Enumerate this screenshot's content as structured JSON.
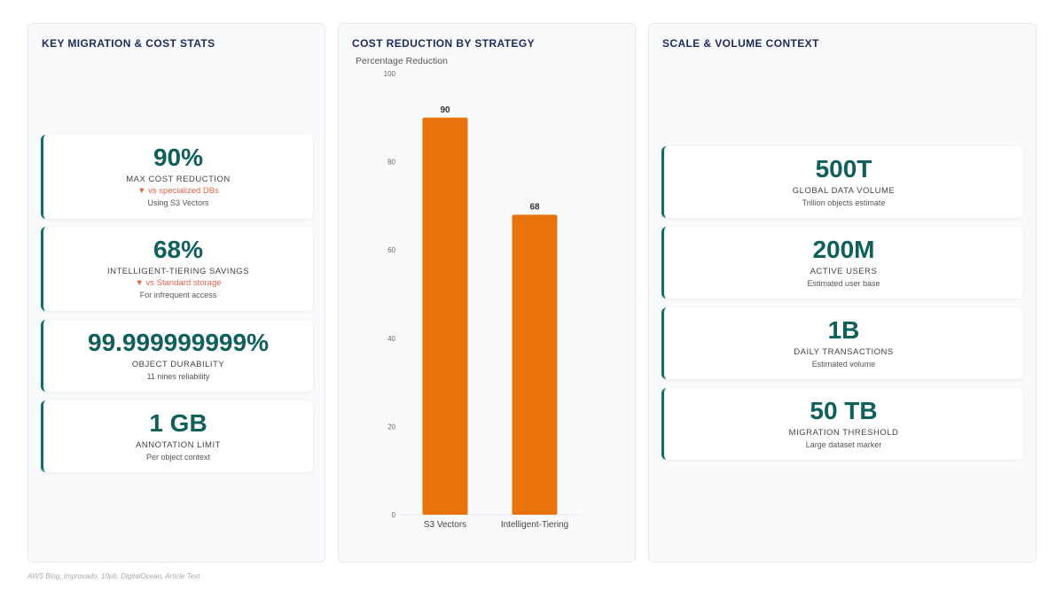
{
  "left_panel": {
    "title": "KEY MIGRATION & COST STATS",
    "cards": [
      {
        "value": "90%",
        "label": "MAX COST REDUCTION",
        "delta": "▼ vs specialized DBs",
        "note": "Using S3 Vectors"
      },
      {
        "value": "68%",
        "label": "INTELLIGENT-TIERING SAVINGS",
        "delta": "▼ vs Standard storage",
        "note": "For infrequent access"
      },
      {
        "value": "99.999999999%",
        "label": "OBJECT DURABILITY",
        "note": "11 nines reliability"
      },
      {
        "value": "1 GB",
        "label": "ANNOTATION LIMIT",
        "note": "Per object context"
      }
    ]
  },
  "mid_panel": {
    "title": "COST REDUCTION BY STRATEGY"
  },
  "right_panel": {
    "title": "SCALE & VOLUME CONTEXT",
    "cards": [
      {
        "value": "500T",
        "label": "GLOBAL DATA VOLUME",
        "note": "Trillion objects estimate"
      },
      {
        "value": "200M",
        "label": "ACTIVE USERS",
        "note": "Estimated user base"
      },
      {
        "value": "1B",
        "label": "DAILY TRANSACTIONS",
        "note": "Estimated volume"
      },
      {
        "value": "50 TB",
        "label": "MIGRATION THRESHOLD",
        "note": "Large dataset marker"
      }
    ]
  },
  "chart_data": {
    "type": "bar",
    "title": "COST REDUCTION BY STRATEGY",
    "ylabel": "Percentage Reduction",
    "xlabel": "",
    "categories": [
      "S3 Vectors",
      "Intelligent-Tiering"
    ],
    "values": [
      90,
      68
    ],
    "ylim": [
      0,
      100
    ],
    "yticks": [
      0,
      20,
      40,
      60,
      80,
      100
    ],
    "bar_color": "#e8730c",
    "grid": false,
    "legend": "none"
  },
  "colors": {
    "accent": "#0f5f5c",
    "delta_down": "#e0634a",
    "bar": "#e8730c",
    "title": "#1e2a5e"
  },
  "footer": {
    "source": "AWS Blog, Improvado, 10pb, DigitalOcean, Article Text"
  }
}
